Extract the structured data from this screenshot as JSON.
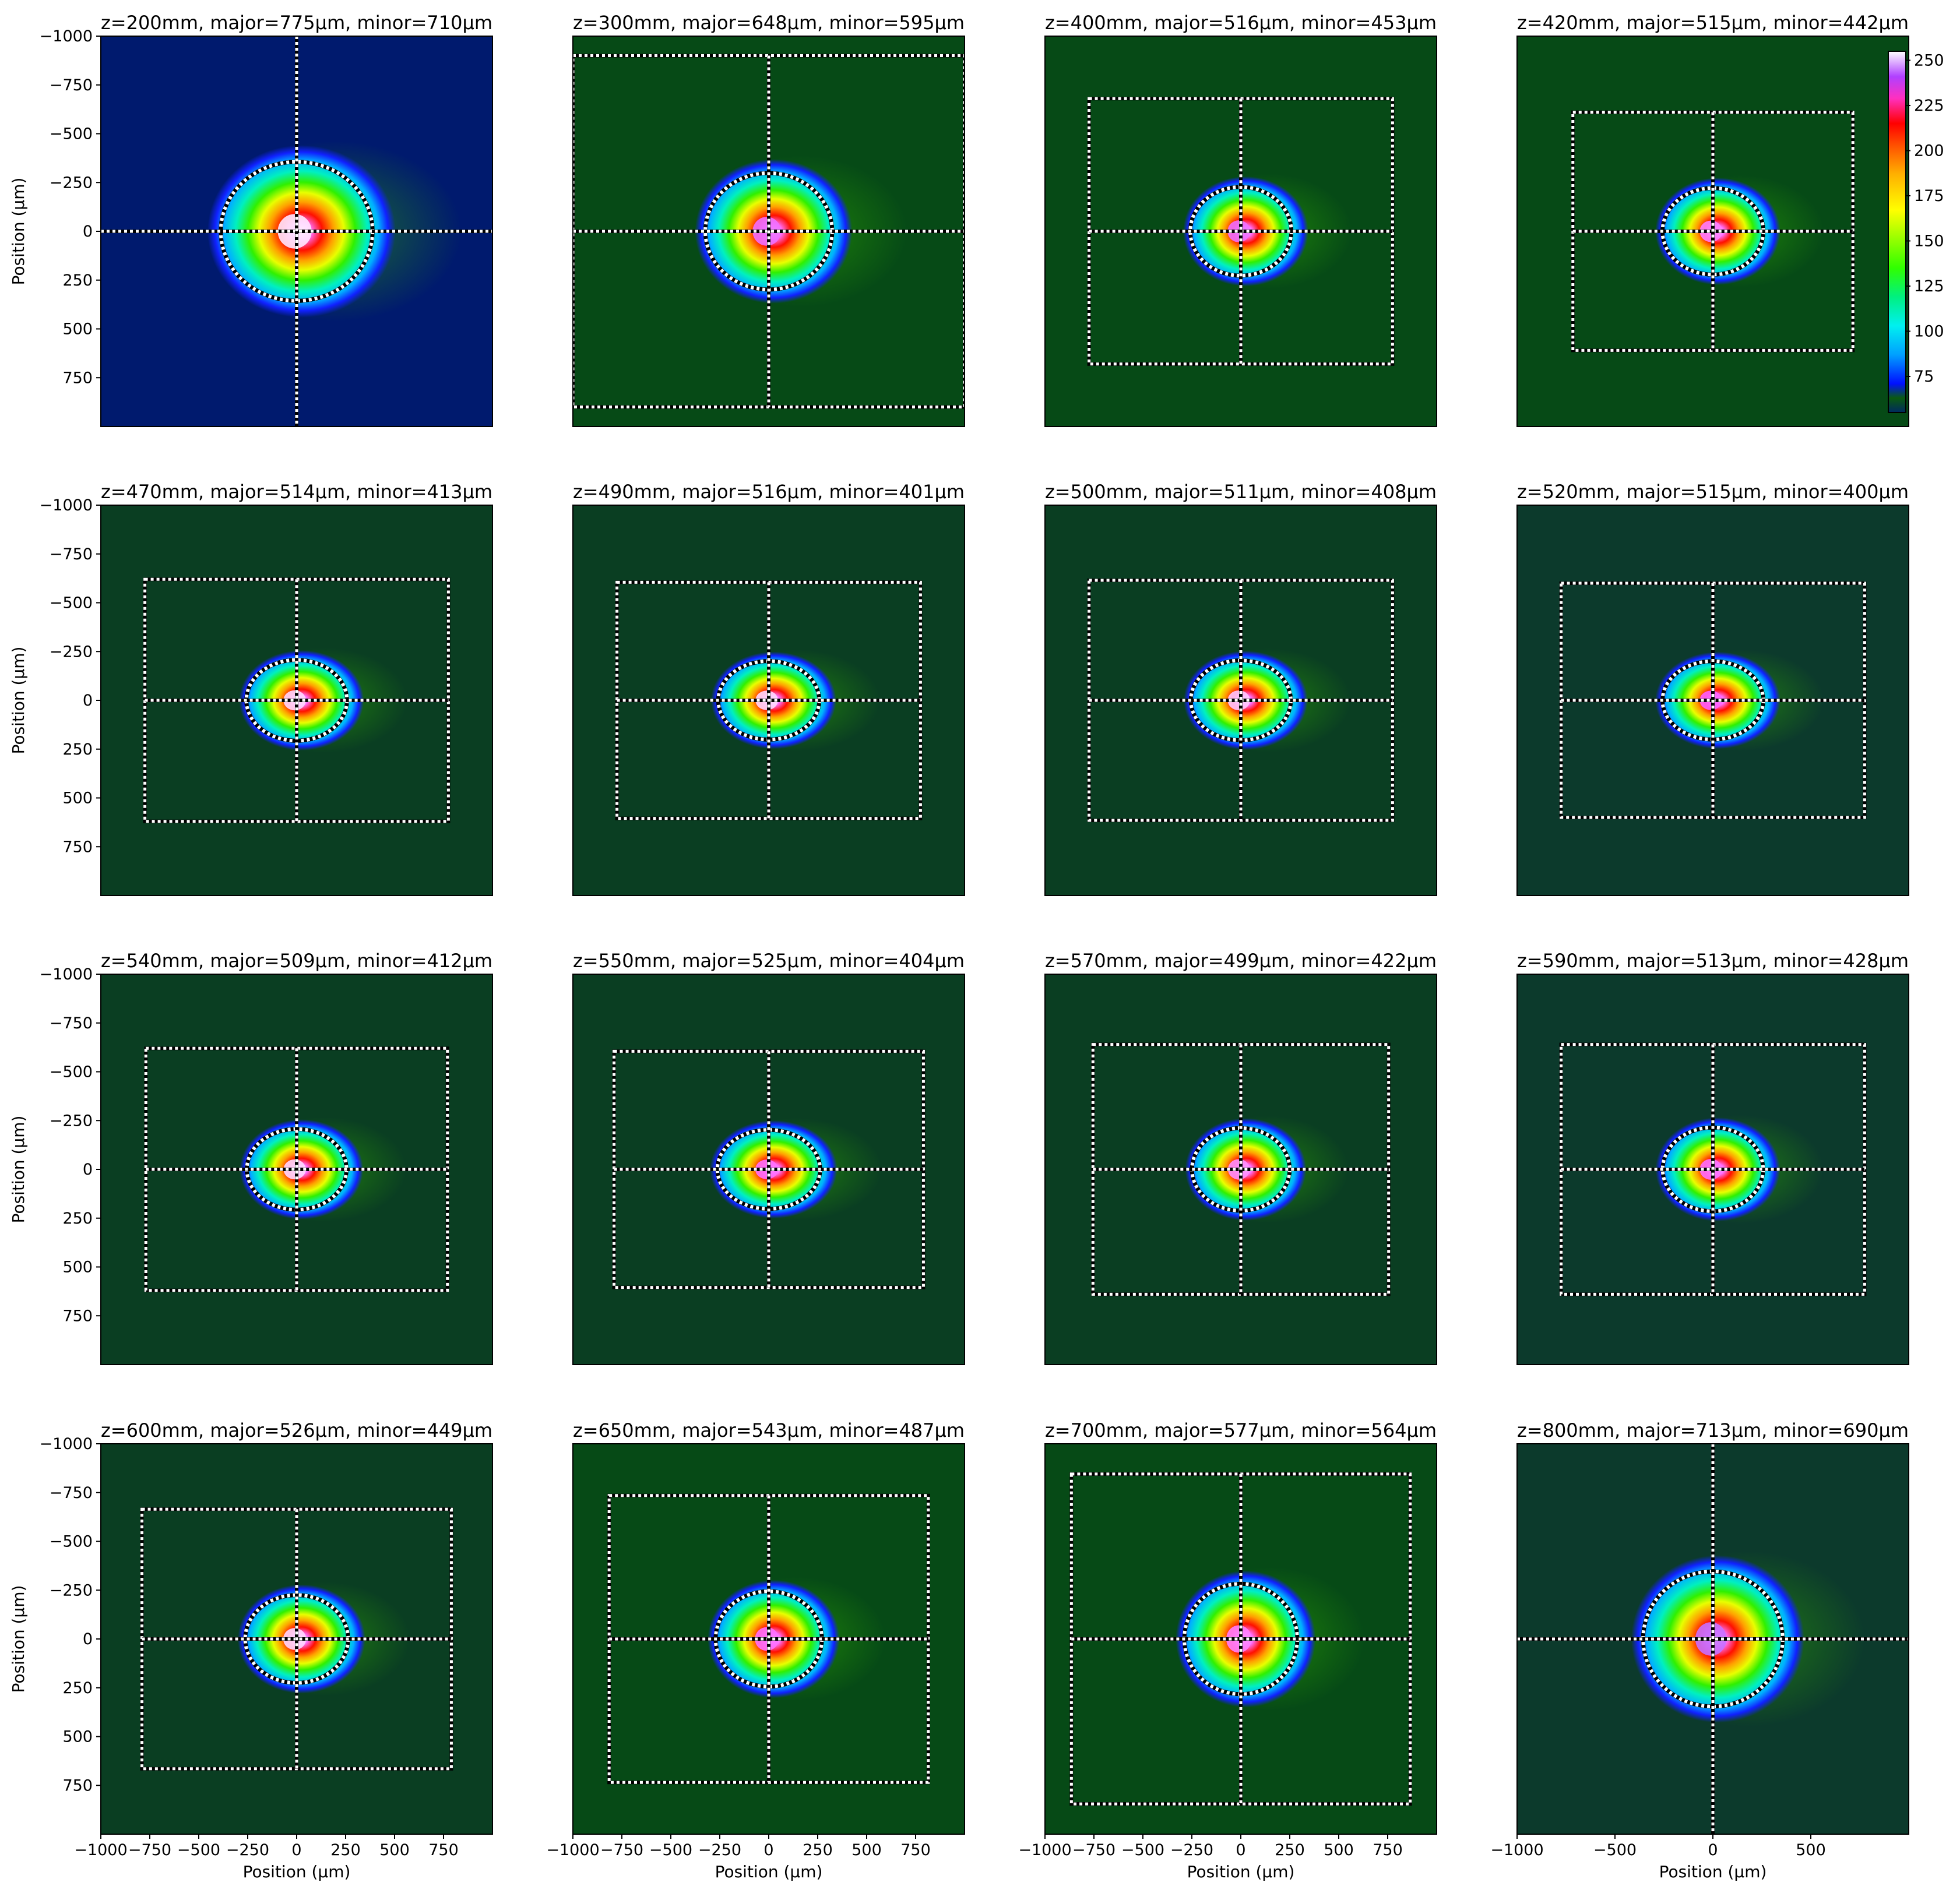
{
  "chart_data": {
    "type": "heatmap",
    "grid": {
      "rows": 4,
      "cols": 4
    },
    "xlabel": "Position (µm)",
    "ylabel": "Position (µm)",
    "xlim": [
      -1000,
      1000
    ],
    "ylim": [
      -1000,
      1000
    ],
    "y_inverted": true,
    "colorbar": {
      "ticks": [
        "75",
        "100",
        "125",
        "150",
        "175",
        "200",
        "225",
        "250"
      ],
      "range": [
        55,
        255
      ],
      "colormap": "gist_ncar-like"
    },
    "panels": [
      {
        "title": "z=200mm, major=775µm, minor=710µm",
        "z_mm": 200,
        "major_um": 775,
        "minor_um": 710,
        "background": "#001a6e",
        "peak_color": "#ffe8ff",
        "roi": null,
        "xticks": [],
        "yticks": [
          "−1000",
          "−750",
          "−500",
          "−250",
          "0",
          "250",
          "500",
          "750"
        ]
      },
      {
        "title": "z=300mm, major=648µm, minor=595µm",
        "z_mm": 300,
        "major_um": 648,
        "minor_um": 595,
        "background": "#064a16",
        "peak_color": "#f070ff",
        "roi": [
          -1000,
          -900,
          1000,
          900
        ],
        "xticks": [],
        "yticks": []
      },
      {
        "title": "z=400mm, major=516µm, minor=453µm",
        "z_mm": 400,
        "major_um": 516,
        "minor_um": 453,
        "background": "#064a16",
        "peak_color": "#f070ff",
        "roi": [
          -775,
          -680,
          775,
          680
        ],
        "xticks": [],
        "yticks": []
      },
      {
        "title": "z=420mm, major=515µm, minor=442µm",
        "z_mm": 420,
        "major_um": 515,
        "minor_um": 442,
        "background": "#064a16",
        "peak_color": "#ff80ff",
        "roi": [
          -715,
          -610,
          715,
          610
        ],
        "xticks": [],
        "yticks": []
      },
      {
        "title": "z=470mm, major=514µm, minor=413µm",
        "z_mm": 470,
        "major_um": 514,
        "minor_um": 413,
        "background": "#0a3e22",
        "peak_color": "#ffd8ff",
        "roi": [
          -775,
          -620,
          775,
          620
        ],
        "xticks": [],
        "yticks": [
          "−1000",
          "−750",
          "−500",
          "−250",
          "0",
          "250",
          "500",
          "750"
        ]
      },
      {
        "title": "z=490mm, major=516µm, minor=401µm",
        "z_mm": 490,
        "major_um": 516,
        "minor_um": 401,
        "background": "#0a3e22",
        "peak_color": "#ffd8ff",
        "roi": [
          -775,
          -605,
          775,
          605
        ],
        "xticks": [],
        "yticks": []
      },
      {
        "title": "z=500mm, major=511µm, minor=408µm",
        "z_mm": 500,
        "major_um": 511,
        "minor_um": 408,
        "background": "#0a3e22",
        "peak_color": "#ffc8ff",
        "roi": [
          -775,
          -615,
          775,
          615
        ],
        "xticks": [],
        "yticks": []
      },
      {
        "title": "z=520mm, major=515µm, minor=400µm",
        "z_mm": 520,
        "major_um": 515,
        "minor_um": 400,
        "background": "#0c3a2c",
        "peak_color": "#ff60ff",
        "roi": [
          -775,
          -600,
          775,
          600
        ],
        "xticks": [],
        "yticks": []
      },
      {
        "title": "z=540mm, major=509µm, minor=412µm",
        "z_mm": 540,
        "major_um": 509,
        "minor_um": 412,
        "background": "#0a3e22",
        "peak_color": "#ffd8ff",
        "roi": [
          -770,
          -620,
          770,
          620
        ],
        "xticks": [],
        "yticks": [
          "−1000",
          "−750",
          "−500",
          "−250",
          "0",
          "250",
          "500",
          "750"
        ]
      },
      {
        "title": "z=550mm, major=525µm, minor=404µm",
        "z_mm": 550,
        "major_um": 525,
        "minor_um": 404,
        "background": "#0a3e22",
        "peak_color": "#ff70ff",
        "roi": [
          -790,
          -605,
          790,
          605
        ],
        "xticks": [],
        "yticks": []
      },
      {
        "title": "z=570mm, major=499µm, minor=422µm",
        "z_mm": 570,
        "major_um": 499,
        "minor_um": 422,
        "background": "#0a3e22",
        "peak_color": "#ff90ff",
        "roi": [
          -755,
          -640,
          755,
          640
        ],
        "xticks": [],
        "yticks": []
      },
      {
        "title": "z=590mm, major=513µm, minor=428µm",
        "z_mm": 590,
        "major_um": 513,
        "minor_um": 428,
        "background": "#0c3a2c",
        "peak_color": "#ff70ff",
        "roi": [
          -775,
          -640,
          775,
          640
        ],
        "xticks": [],
        "yticks": []
      },
      {
        "title": "z=600mm, major=526µm, minor=449µm",
        "z_mm": 600,
        "major_um": 526,
        "minor_um": 449,
        "background": "#0a3e22",
        "peak_color": "#ffd8ff",
        "roi": [
          -790,
          -665,
          790,
          665
        ],
        "xticks": [
          "−1000",
          "−750",
          "−500",
          "−250",
          "0",
          "250",
          "500",
          "750"
        ],
        "yticks": [
          "−1000",
          "−750",
          "−500",
          "−250",
          "0",
          "250",
          "500",
          "750"
        ]
      },
      {
        "title": "z=650mm, major=543µm, minor=487µm",
        "z_mm": 650,
        "major_um": 543,
        "minor_um": 487,
        "background": "#064a16",
        "peak_color": "#ff70ff",
        "roi": [
          -815,
          -735,
          815,
          735
        ],
        "xticks": [
          "−1000",
          "−750",
          "−500",
          "−250",
          "0",
          "250",
          "500",
          "750"
        ],
        "yticks": []
      },
      {
        "title": "z=700mm, major=577µm, minor=564µm",
        "z_mm": 700,
        "major_um": 577,
        "minor_um": 564,
        "background": "#064a16",
        "peak_color": "#ff80ff",
        "roi": [
          -865,
          -845,
          865,
          845
        ],
        "xticks": [
          "−1000",
          "−750",
          "−500",
          "−250",
          "0",
          "250",
          "500",
          "750"
        ],
        "yticks": []
      },
      {
        "title": "z=800mm, major=713µm, minor=690µm",
        "z_mm": 800,
        "major_um": 713,
        "minor_um": 690,
        "background": "#0c3a2c",
        "peak_color": "#c870ff",
        "roi": null,
        "xticks": [
          "−1000",
          "−500",
          "0",
          "500"
        ],
        "yticks": []
      }
    ]
  }
}
